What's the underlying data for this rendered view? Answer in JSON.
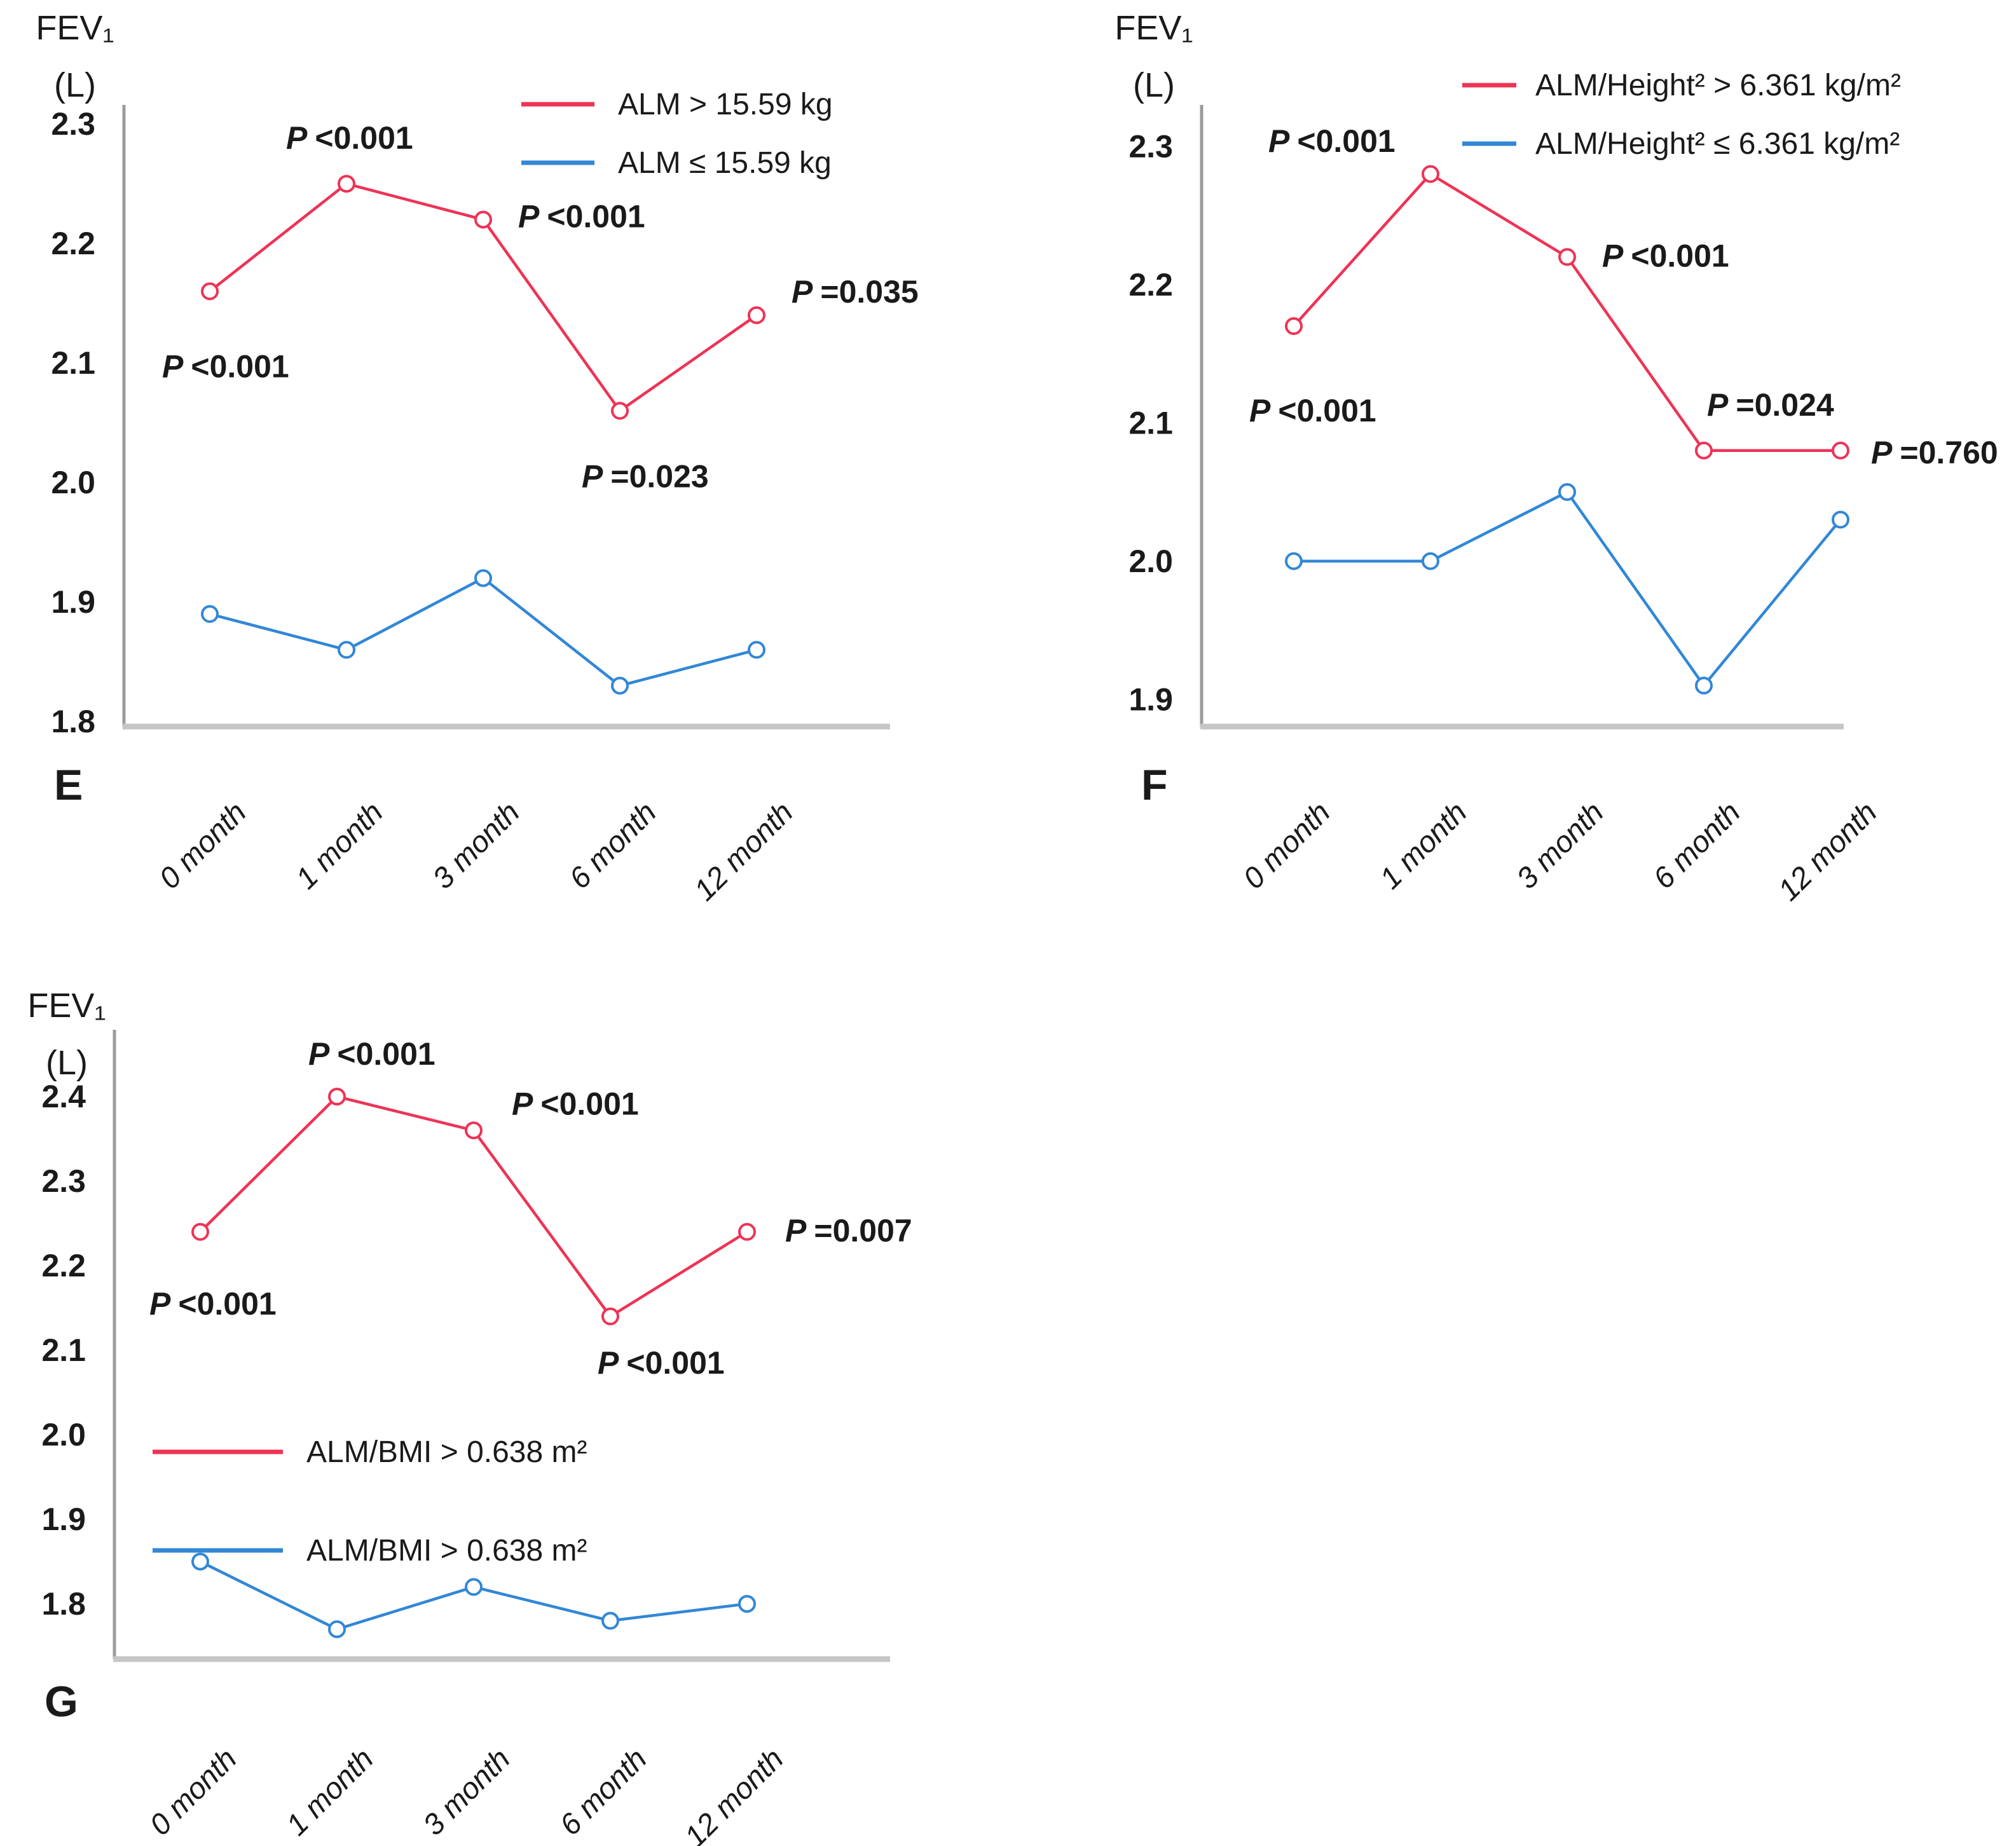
{
  "figure": {
    "background": "#ffffff",
    "description_visible_text_only": true
  },
  "colors": {
    "red": "#EE3355",
    "blue": "#3287D6",
    "axis_y": "#9B9B9B",
    "axis_x": "#C6C6C6",
    "text": "#1A1A1A",
    "marker_fill": "#FFFFFF"
  },
  "chart_data": [
    {
      "id": "E",
      "type": "line",
      "panel_label": "E",
      "title": "",
      "xlabel": "",
      "ylabel": "FEV₁ (L)",
      "ylabel_lines": [
        "FEV₁",
        "(L)"
      ],
      "categories": [
        "0 month",
        "1 month",
        "3 month",
        "6 month",
        "12 month"
      ],
      "y_tick_labels": [
        "2.3",
        "2.2",
        "2.1",
        "2.0",
        "1.9",
        "1.8"
      ],
      "ylim": [
        1.8,
        2.3
      ],
      "grid": false,
      "legend_position": "top-right-inside",
      "series": [
        {
          "name": "ALM > 15.59 kg",
          "color": "red",
          "values": [
            2.16,
            2.25,
            2.22,
            2.06,
            2.14
          ]
        },
        {
          "name": "ALM ≤ 15.59 kg",
          "color": "blue",
          "values": [
            1.89,
            1.86,
            1.92,
            1.83,
            1.86
          ]
        }
      ],
      "p_annotations": [
        {
          "text": "P <0.001",
          "series_index": 0,
          "point_index": 0
        },
        {
          "text": "P <0.001",
          "series_index": 0,
          "point_index": 1
        },
        {
          "text": "P <0.001",
          "series_index": 0,
          "point_index": 2
        },
        {
          "text": "P =0.023",
          "series_index": 0,
          "point_index": 3
        },
        {
          "text": "P =0.035",
          "series_index": 0,
          "point_index": 4
        }
      ]
    },
    {
      "id": "F",
      "type": "line",
      "panel_label": "F",
      "title": "",
      "xlabel": "",
      "ylabel": "FEV₁ (L)",
      "ylabel_lines": [
        "FEV₁",
        "(L)"
      ],
      "categories": [
        "0 month",
        "1 month",
        "3 month",
        "6 month",
        "12 month"
      ],
      "y_tick_labels": [
        "2.3",
        "2.2",
        "2.1",
        "2.0",
        "1.9"
      ],
      "ylim": [
        1.9,
        2.3
      ],
      "grid": false,
      "legend_position": "top-right-inside",
      "series": [
        {
          "name": "ALM/Height² > 6.361 kg/m²",
          "color": "red",
          "values": [
            2.17,
            2.28,
            2.22,
            2.08,
            2.08
          ]
        },
        {
          "name": "ALM/Height² ≤ 6.361 kg/m²",
          "color": "blue",
          "values": [
            2.0,
            2.0,
            2.05,
            1.91,
            2.03
          ]
        }
      ],
      "p_annotations": [
        {
          "text": "P <0.001",
          "series_index": 0,
          "point_index": 0
        },
        {
          "text": "P <0.001",
          "series_index": 0,
          "point_index": 1
        },
        {
          "text": "P <0.001",
          "series_index": 0,
          "point_index": 2
        },
        {
          "text": "P =0.024",
          "series_index": 0,
          "point_index": 3
        },
        {
          "text": "P =0.760",
          "series_index": 0,
          "point_index": 4
        }
      ]
    },
    {
      "id": "G",
      "type": "line",
      "panel_label": "G",
      "title": "",
      "xlabel": "",
      "ylabel": "FEV₁ (L)",
      "ylabel_lines": [
        "FEV₁",
        "(L)"
      ],
      "categories": [
        "0 month",
        "1 month",
        "3 month",
        "6 month",
        "12 month"
      ],
      "y_tick_labels": [
        "2.4",
        "2.3",
        "2.2",
        "2.1",
        "2.0",
        "1.9",
        "1.8"
      ],
      "ylim": [
        1.8,
        2.4
      ],
      "grid": false,
      "legend_position": "middle-left-inside",
      "series": [
        {
          "name": "ALM/BMI > 0.638 m²",
          "color": "red",
          "values": [
            2.24,
            2.4,
            2.36,
            2.14,
            2.24
          ]
        },
        {
          "name": "ALM/BMI > 0.638 m²",
          "color": "blue",
          "values": [
            1.85,
            1.77,
            1.82,
            1.78,
            1.8
          ]
        }
      ],
      "p_annotations": [
        {
          "text": "P <0.001",
          "series_index": 0,
          "point_index": 0
        },
        {
          "text": "P <0.001",
          "series_index": 0,
          "point_index": 1
        },
        {
          "text": "P <0.001",
          "series_index": 0,
          "point_index": 2
        },
        {
          "text": "P <0.001",
          "series_index": 0,
          "point_index": 3
        },
        {
          "text": "P =0.007",
          "series_index": 0,
          "point_index": 4
        }
      ]
    }
  ]
}
